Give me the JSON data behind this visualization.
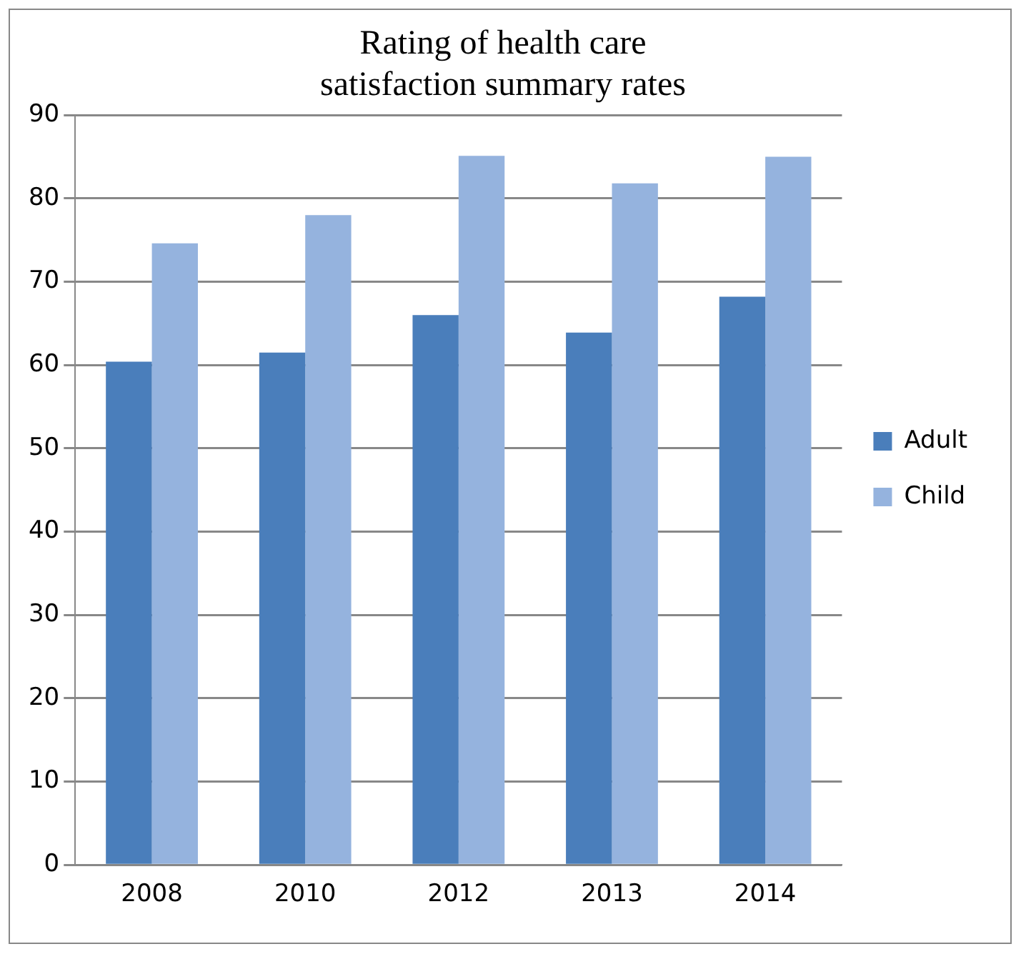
{
  "chart_data": {
    "type": "bar",
    "title": [
      "Rating of health care",
      "satisfaction summary rates"
    ],
    "categories": [
      "2008",
      "2010",
      "2012",
      "2013",
      "2014"
    ],
    "series": [
      {
        "name": "Adult",
        "color": "#4a7ebb",
        "values": [
          60.4,
          61.5,
          66,
          63.9,
          68.2
        ]
      },
      {
        "name": "Child",
        "color": "#95b3de",
        "values": [
          74.6,
          78,
          85.1,
          81.8,
          85
        ]
      }
    ],
    "ylim": [
      0,
      90
    ],
    "yticks": [
      0,
      10,
      20,
      30,
      40,
      50,
      60,
      70,
      80,
      90
    ],
    "grid": "y",
    "legend": "right"
  }
}
